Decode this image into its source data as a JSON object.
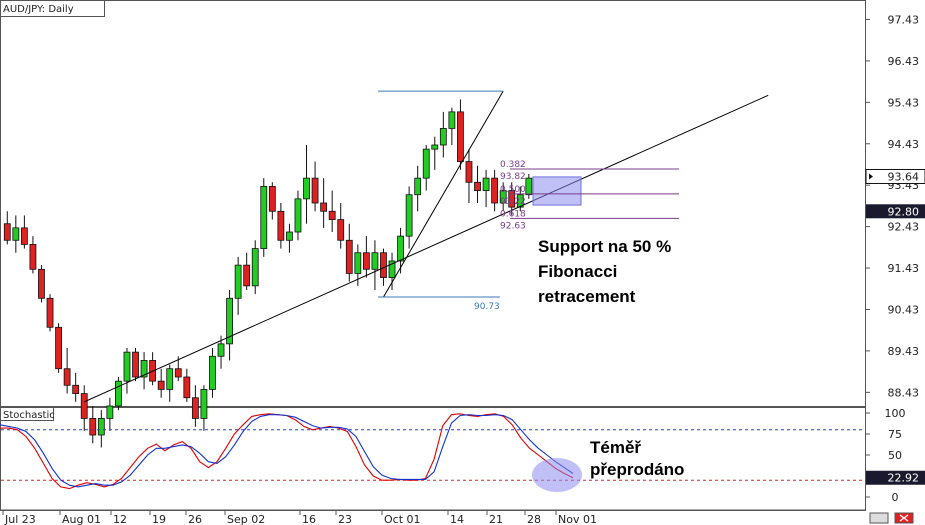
{
  "chart_data": [
    {
      "type": "candlestick",
      "title": "AUD/JPY: Daily",
      "y_ticks": [
        "97.43",
        "96.43",
        "95.43",
        "94.43",
        "93.43",
        "92.43",
        "91.43",
        "90.43",
        "89.43",
        "88.43"
      ],
      "y_tick_values": [
        97.43,
        96.43,
        95.43,
        94.43,
        93.43,
        92.43,
        91.43,
        90.43,
        89.43,
        88.43
      ],
      "ylim": [
        88.1,
        97.9
      ],
      "x_ticks": [
        "Jul 23",
        "Aug 01",
        "12",
        "19",
        "26",
        "Sep 02",
        "16",
        "23",
        "Oct 01",
        "14",
        "21",
        "28",
        "Nov 01"
      ],
      "price_labels": [
        {
          "text": "93.64",
          "value": 93.64,
          "style": "pointer"
        },
        {
          "text": "92.80",
          "value": 92.8,
          "style": "box"
        }
      ],
      "candles": [
        [
          92.5,
          92.8,
          92.0,
          92.1
        ],
        [
          92.1,
          92.7,
          91.8,
          92.4
        ],
        [
          92.4,
          92.7,
          91.9,
          92.0
        ],
        [
          92.0,
          92.2,
          91.3,
          91.4
        ],
        [
          91.4,
          91.5,
          90.6,
          90.7
        ],
        [
          90.7,
          90.8,
          89.9,
          90.0
        ],
        [
          90.0,
          90.1,
          88.9,
          89.0
        ],
        [
          89.0,
          89.5,
          88.4,
          88.6
        ],
        [
          88.6,
          88.9,
          88.2,
          88.4
        ],
        [
          88.4,
          88.6,
          87.5,
          87.8
        ],
        [
          87.8,
          88.1,
          87.2,
          87.4
        ],
        [
          87.4,
          88.0,
          87.1,
          87.8
        ],
        [
          87.8,
          88.3,
          87.5,
          88.1
        ],
        [
          88.1,
          88.8,
          88.0,
          88.7
        ],
        [
          88.7,
          89.5,
          88.4,
          89.4
        ],
        [
          89.4,
          89.5,
          88.7,
          88.8
        ],
        [
          88.8,
          89.4,
          88.5,
          89.2
        ],
        [
          89.2,
          89.4,
          88.6,
          88.7
        ],
        [
          88.7,
          89.0,
          88.3,
          88.5
        ],
        [
          88.5,
          89.1,
          88.2,
          89.0
        ],
        [
          89.0,
          89.3,
          88.7,
          88.8
        ],
        [
          88.8,
          89.0,
          88.2,
          88.3
        ],
        [
          88.3,
          88.6,
          87.6,
          87.8
        ],
        [
          87.8,
          88.6,
          87.5,
          88.5
        ],
        [
          88.5,
          89.5,
          88.3,
          89.3
        ],
        [
          89.3,
          89.8,
          89.0,
          89.6
        ],
        [
          89.6,
          90.9,
          89.2,
          90.7
        ],
        [
          90.7,
          91.7,
          90.3,
          91.5
        ],
        [
          91.5,
          91.8,
          90.9,
          91.0
        ],
        [
          91.0,
          92.1,
          90.8,
          91.9
        ],
        [
          91.9,
          93.6,
          91.7,
          93.4
        ],
        [
          93.4,
          93.5,
          92.6,
          92.8
        ],
        [
          92.8,
          93.0,
          91.9,
          92.1
        ],
        [
          92.1,
          92.5,
          91.8,
          92.3
        ],
        [
          92.3,
          93.3,
          92.1,
          93.1
        ],
        [
          93.1,
          94.4,
          92.5,
          93.6
        ],
        [
          93.6,
          94.0,
          92.8,
          93.0
        ],
        [
          93.0,
          93.6,
          92.4,
          92.8
        ],
        [
          92.8,
          93.3,
          92.3,
          92.6
        ],
        [
          92.6,
          93.0,
          91.9,
          92.1
        ],
        [
          92.1,
          92.5,
          91.1,
          91.3
        ],
        [
          91.3,
          92.0,
          91.0,
          91.8
        ],
        [
          91.8,
          92.2,
          91.2,
          91.4
        ],
        [
          91.4,
          92.1,
          90.9,
          91.8
        ],
        [
          91.8,
          91.9,
          91.0,
          91.2
        ],
        [
          91.2,
          91.8,
          90.9,
          91.6
        ],
        [
          91.6,
          92.4,
          91.3,
          92.2
        ],
        [
          92.2,
          93.4,
          91.9,
          93.2
        ],
        [
          93.2,
          93.9,
          92.8,
          93.6
        ],
        [
          93.6,
          94.4,
          93.3,
          94.3
        ],
        [
          94.3,
          94.6,
          93.8,
          94.4
        ],
        [
          94.4,
          95.2,
          94.1,
          94.8
        ],
        [
          94.8,
          95.3,
          94.4,
          95.2
        ],
        [
          95.2,
          95.5,
          93.8,
          94.0
        ],
        [
          94.0,
          94.3,
          93.0,
          93.5
        ],
        [
          93.5,
          93.9,
          93.0,
          93.3
        ],
        [
          93.3,
          93.8,
          92.9,
          93.6
        ],
        [
          93.6,
          93.8,
          92.8,
          93.0
        ],
        [
          93.0,
          93.5,
          92.8,
          93.3
        ],
        [
          93.3,
          93.5,
          92.7,
          92.9
        ],
        [
          92.9,
          93.4,
          92.8,
          93.2
        ],
        [
          93.2,
          93.7,
          93.1,
          93.6
        ]
      ],
      "fibonacci": {
        "swing_low": "90.73",
        "swing_high_value": 95.7,
        "levels": [
          {
            "ratio": "0.382",
            "price": "93.82",
            "value": 93.82
          },
          {
            "ratio": "0.500",
            "price": "93.22",
            "value": 93.22
          },
          {
            "ratio": "0.618",
            "price": "92.63",
            "value": 92.63
          }
        ]
      },
      "trendline": {
        "from": {
          "index": 9,
          "value": 88.2
        },
        "to": {
          "index": 89,
          "value": 95.6
        }
      },
      "annotation": {
        "lines": [
          "Support na 50 %",
          "Fibonacci",
          "retracement"
        ]
      }
    },
    {
      "type": "line",
      "title": "Stochastic",
      "y_ticks": [
        "100",
        "75",
        "50",
        "25",
        "0"
      ],
      "y_tick_values": [
        100,
        75,
        50,
        25,
        0
      ],
      "ylim": [
        0,
        100
      ],
      "levels": [
        80,
        20
      ],
      "current_label": {
        "text": "22.92",
        "value": 22.92
      },
      "series": [
        {
          "color": "#dd0000",
          "values": [
            82,
            82,
            80,
            72,
            58,
            40,
            22,
            12,
            10,
            14,
            17,
            15,
            12,
            15,
            22,
            35,
            48,
            58,
            63,
            55,
            62,
            66,
            58,
            42,
            35,
            42,
            58,
            75,
            86,
            96,
            98,
            99,
            98,
            97,
            92,
            84,
            80,
            82,
            84,
            82,
            78,
            60,
            38,
            25,
            20,
            20,
            21,
            20,
            20,
            22,
            45,
            85,
            98,
            99,
            97,
            96,
            98,
            99,
            96,
            86,
            70,
            58,
            50,
            42,
            34,
            28,
            23
          ]
        },
        {
          "color": "#1133cc",
          "values": [
            86,
            84,
            82,
            78,
            68,
            52,
            34,
            20,
            14,
            12,
            14,
            16,
            14,
            14,
            18,
            26,
            38,
            50,
            58,
            58,
            60,
            62,
            60,
            52,
            42,
            40,
            48,
            62,
            78,
            90,
            96,
            98,
            98,
            97,
            95,
            90,
            85,
            82,
            83,
            83,
            81,
            72,
            54,
            36,
            26,
            22,
            21,
            21,
            21,
            21,
            30,
            60,
            88,
            97,
            98,
            97,
            97,
            98,
            97,
            92,
            80,
            68,
            58,
            50,
            42,
            35,
            28
          ]
        }
      ],
      "annotation": {
        "lines": [
          "Téměř",
          "přeprodáno"
        ]
      }
    }
  ],
  "colors": {
    "bull": "#22cc22",
    "bear": "#dd2222",
    "trendline": "#000000",
    "fib": "#7a3c8c",
    "swing": "#3b7ab8",
    "highlight": "#8c8cf0",
    "level_red": "#dd2222",
    "level_blue": "#2244cc",
    "label_box": "#1a1a2e"
  }
}
